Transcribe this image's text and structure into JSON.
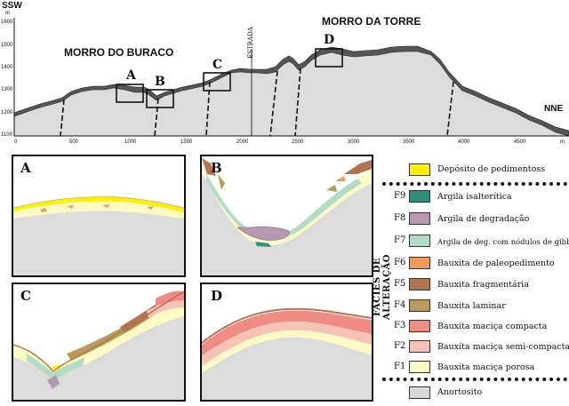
{
  "profile": {
    "direction_left": "SSW",
    "direction_right": "NNE",
    "unit": "m",
    "y_ticks": [
      "1600",
      "1500",
      "1400",
      "1300",
      "1200",
      "1100"
    ],
    "x_ticks": [
      "0",
      "500",
      "1000",
      "1500",
      "2000",
      "2500",
      "3000",
      "3500",
      "4000",
      "4500",
      "m"
    ],
    "hill_left": "MORRO DO BURACO",
    "hill_right": "MORRO DA TORRE",
    "road_label": "ESTRADA",
    "box_labels": [
      "A",
      "B",
      "C",
      "D"
    ]
  },
  "panels": [
    {
      "letter": "A"
    },
    {
      "letter": "B"
    },
    {
      "letter": "C"
    },
    {
      "letter": "D"
    }
  ],
  "legend": {
    "vertical_title": "FÁCIES DE ALTERAÇÃO",
    "top_item": {
      "label": "Depósito de pedimentoss",
      "color": "#ffef00"
    },
    "items": [
      {
        "code": "F9",
        "label": "Argila isalterítica",
        "color": "#2f8f7a"
      },
      {
        "code": "F8",
        "label": "Argila de degradação",
        "color": "#b79ab2"
      },
      {
        "code": "F7",
        "label": "Argila de deg. com nódulos de gibbsita",
        "color": "#b3dcc6"
      },
      {
        "code": "F6",
        "label": "Bauxita de paleopedimento",
        "color": "#f29a5c"
      },
      {
        "code": "F5",
        "label": "Bauxita fragmentária",
        "color": "#b1744f"
      },
      {
        "code": "F4",
        "label": "Bauxita laminar",
        "color": "#b89a5c"
      },
      {
        "code": "F3",
        "label": "Bauxita maciça compacta",
        "color": "#ee8b82"
      },
      {
        "code": "F2",
        "label": "Bauxita maciça semi-compacta",
        "color": "#f8c3b7"
      },
      {
        "code": "F1",
        "label": "Bauxita maciça porosa",
        "color": "#fdfac4"
      }
    ],
    "bottom_item": {
      "label": "Anortosito",
      "color": "#d9d9d9"
    }
  }
}
